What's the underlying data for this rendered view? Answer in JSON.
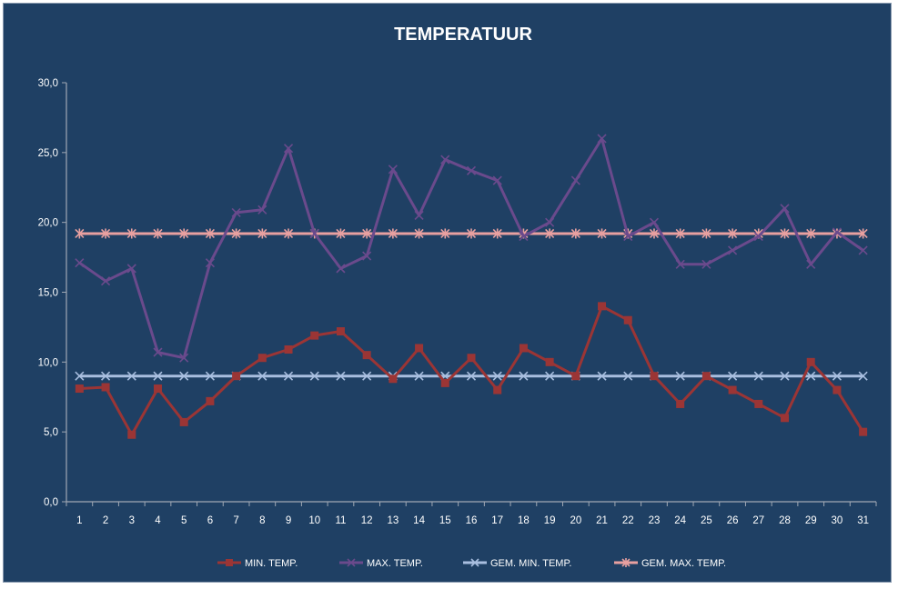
{
  "chart_data": {
    "type": "line",
    "title": "TEMPERATUUR",
    "xlabel": "",
    "ylabel": "",
    "ylim": [
      0,
      30
    ],
    "yticks": [
      "0,0",
      "5,0",
      "10,0",
      "15,0",
      "20,0",
      "25,0",
      "30,0"
    ],
    "categories": [
      "1",
      "2",
      "3",
      "4",
      "5",
      "6",
      "7",
      "8",
      "9",
      "10",
      "11",
      "12",
      "13",
      "14",
      "15",
      "16",
      "17",
      "18",
      "19",
      "20",
      "21",
      "22",
      "23",
      "24",
      "25",
      "26",
      "27",
      "28",
      "29",
      "30",
      "31"
    ],
    "grid": false,
    "legend_position": "bottom",
    "background_color": "#1f4064",
    "series": [
      {
        "name": "MIN. TEMP.",
        "color": "#9b3535",
        "marker": "square",
        "values": [
          8.1,
          8.2,
          4.8,
          8.1,
          5.7,
          7.2,
          9.0,
          10.3,
          10.9,
          11.9,
          12.2,
          10.5,
          8.8,
          11.0,
          8.5,
          10.3,
          8.0,
          11.0,
          10.0,
          9.0,
          14.0,
          13.0,
          9.0,
          7.0,
          9.0,
          8.0,
          7.0,
          6.0,
          10.0,
          8.0,
          5.0
        ]
      },
      {
        "name": "MAX. TEMP.",
        "color": "#6a4a8c",
        "marker": "cross",
        "values": [
          17.1,
          15.8,
          16.7,
          10.7,
          10.3,
          17.1,
          20.7,
          20.9,
          25.3,
          19.2,
          16.7,
          17.6,
          23.8,
          20.5,
          24.5,
          23.7,
          23.0,
          19.0,
          20.0,
          23.0,
          26.0,
          19.0,
          20.0,
          17.0,
          17.0,
          18.0,
          19.0,
          21.0,
          17.0,
          19.3,
          18.0
        ]
      },
      {
        "name": "GEM. MIN. TEMP.",
        "color": "#a8bedf",
        "marker": "x",
        "values": [
          9.0,
          9.0,
          9.0,
          9.0,
          9.0,
          9.0,
          9.0,
          9.0,
          9.0,
          9.0,
          9.0,
          9.0,
          9.0,
          9.0,
          9.0,
          9.0,
          9.0,
          9.0,
          9.0,
          9.0,
          9.0,
          9.0,
          9.0,
          9.0,
          9.0,
          9.0,
          9.0,
          9.0,
          9.0,
          9.0,
          9.0
        ]
      },
      {
        "name": "GEM. MAX. TEMP.",
        "color": "#e8a0a0",
        "marker": "asterisk",
        "values": [
          19.2,
          19.2,
          19.2,
          19.2,
          19.2,
          19.2,
          19.2,
          19.2,
          19.2,
          19.2,
          19.2,
          19.2,
          19.2,
          19.2,
          19.2,
          19.2,
          19.2,
          19.2,
          19.2,
          19.2,
          19.2,
          19.2,
          19.2,
          19.2,
          19.2,
          19.2,
          19.2,
          19.2,
          19.2,
          19.2,
          19.2
        ]
      }
    ]
  }
}
